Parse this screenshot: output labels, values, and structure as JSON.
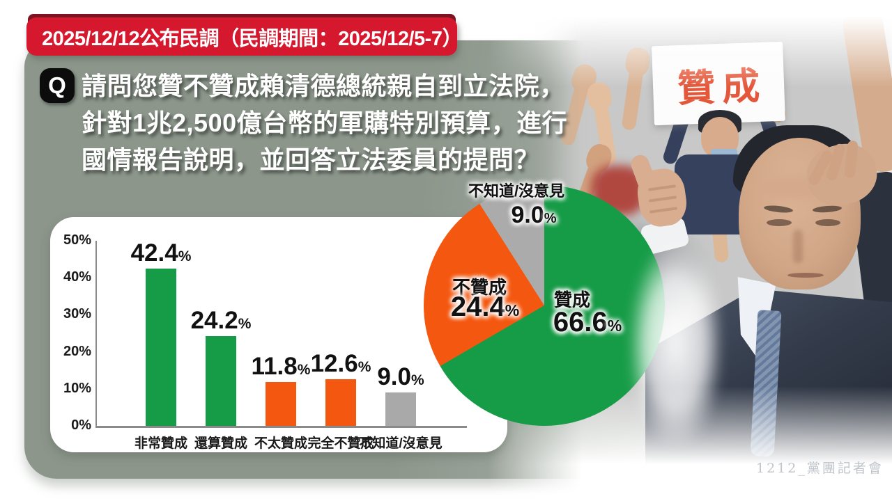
{
  "banner": {
    "text": "2025/12/12公布民調（民調期間：2025/12/5-7）"
  },
  "question": {
    "badge": "Q",
    "lines": [
      "請問您贊不贊成賴清德總統親自到立法院，",
      "針對1兆2,500億台幣的軍購特別預算，進行",
      "國情報告說明，並回答立法委員的提問？"
    ]
  },
  "chart_data": [
    {
      "type": "bar",
      "title": "",
      "categories": [
        "非常贊成",
        "還算贊成",
        "不太贊成",
        "完全不贊成",
        "不知道/沒意見"
      ],
      "values": [
        42.4,
        24.2,
        11.8,
        12.6,
        9.0
      ],
      "unit": "%",
      "xlabel": "",
      "ylabel": "",
      "ylim": [
        0,
        50
      ],
      "yticks": [
        "50%",
        "40%",
        "30%",
        "20%",
        "10%",
        "0%"
      ],
      "bar_colors": [
        "#169c47",
        "#169c47",
        "#f4570f",
        "#f4570f",
        "#a9a9a9"
      ],
      "grid": false,
      "value_labels": true,
      "legend": "none"
    },
    {
      "type": "pie",
      "start_angle_deg": 0,
      "direction": "clockwise",
      "unit": "%",
      "slices": [
        {
          "label": "贊成",
          "value": 66.6,
          "color": "#169c47"
        },
        {
          "label": "不贊成",
          "value": 24.4,
          "color": "#f4570f"
        },
        {
          "label": "不知道/沒意見",
          "value": 9.0,
          "color": "#ababab"
        }
      ],
      "legend": "none"
    }
  ],
  "photo": {
    "sign_text": "贊成"
  },
  "watermark": {
    "text": "1212_黨團記者會"
  },
  "colors": {
    "banner_red": "#d6182e",
    "banner_dark_red": "#7c1422",
    "card_sage": "#8c968b",
    "approve_green": "#169c47",
    "oppose_orange": "#f4570f",
    "unknown_gray": "#ababab",
    "text_white": "#ffffff",
    "text_dark": "#111111"
  }
}
